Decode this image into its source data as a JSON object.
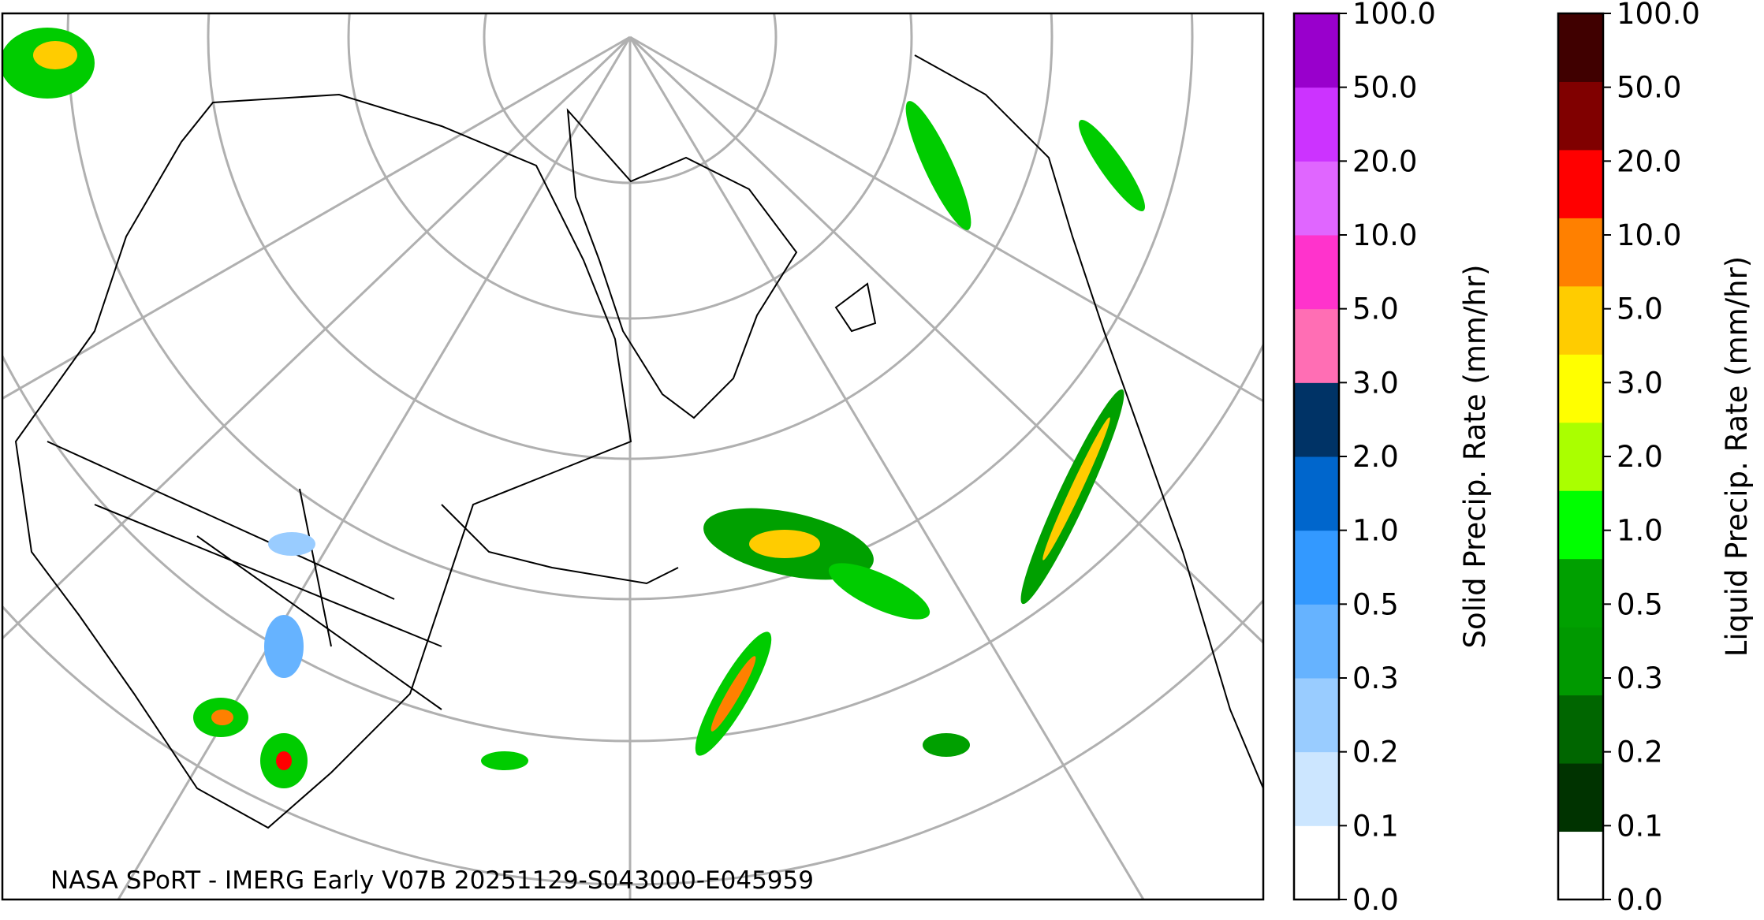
{
  "map": {
    "caption": "NASA SPoRT - IMERG Early V07B 20251129-S043000-E045959"
  },
  "colorbars": [
    {
      "title": "Solid Precip. Rate (mm/hr)",
      "tick_labels": [
        "0.0",
        "0.1",
        "0.2",
        "0.3",
        "0.5",
        "1.0",
        "2.0",
        "3.0",
        "5.0",
        "10.0",
        "20.0",
        "50.0",
        "100.0"
      ],
      "colors": [
        "#ffffff",
        "#cce6ff",
        "#99ccff",
        "#66b3ff",
        "#3399ff",
        "#0066cc",
        "#003366",
        "#ff6eb4",
        "#ff33cc",
        "#e066ff",
        "#cc33ff",
        "#9900cc"
      ]
    },
    {
      "title": "Liquid Precip. Rate (mm/hr)",
      "tick_labels": [
        "0.0",
        "0.1",
        "0.2",
        "0.3",
        "0.5",
        "1.0",
        "2.0",
        "3.0",
        "5.0",
        "10.0",
        "20.0",
        "50.0",
        "100.0"
      ],
      "colors": [
        "#ffffff",
        "#003300",
        "#006600",
        "#009900",
        "#00a000",
        "#00ff00",
        "#aaff00",
        "#ffff00",
        "#ffcc00",
        "#ff8000",
        "#ff0000",
        "#800000",
        "#400000"
      ]
    }
  ]
}
